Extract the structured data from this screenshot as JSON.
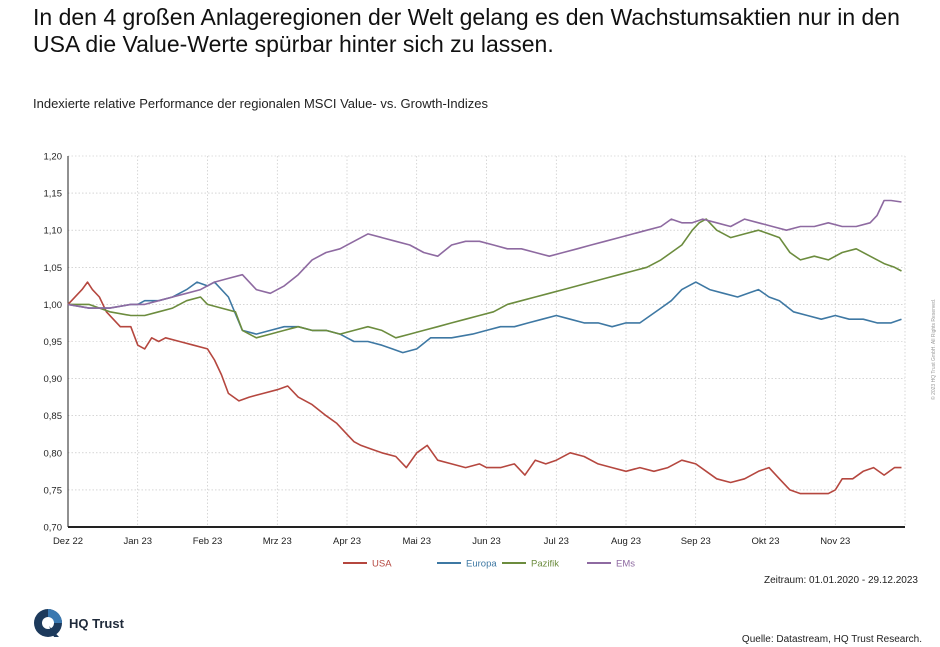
{
  "headline": "In den 4 großen Anlageregionen der Welt gelang es den Wachstumsaktien nur in den USA die Value-Werte spürbar hinter sich zu lassen.",
  "subtitle": "Indexierte relative Performance der regionalen MSCI Value- vs. Growth-Indizes",
  "timespan": "Zeitraum: 01.01.2020 - 29.12.2023",
  "source": "Quelle: Datastream, HQ Trust Research.",
  "copyright": "© 2023 HQ Trust GmbH. All Rights Reserved.",
  "logo": {
    "text": "HQ Trust"
  },
  "chart_data": {
    "type": "line",
    "title": "Indexierte relative Performance der regionalen MSCI Value- vs. Growth-Indizes",
    "xlabel": "",
    "ylabel": "",
    "x_range": [
      0,
      12
    ],
    "ylim": [
      0.7,
      1.2
    ],
    "grid": true,
    "legend_position": "bottom-center",
    "x_tick_labels": [
      "Dez 22",
      "Jan 23",
      "Feb 23",
      "Mrz 23",
      "Apr 23",
      "Mai 23",
      "Jun 23",
      "Jul 23",
      "Aug 23",
      "Sep 23",
      "Okt 23",
      "Nov 23"
    ],
    "y_tick_labels": [
      "1,20",
      "1,15",
      "1,10",
      "1,05",
      "1,00",
      "0,95",
      "0,90",
      "0,85",
      "0,80",
      "0,75",
      "0,70"
    ],
    "y_ticks": [
      1.2,
      1.15,
      1.1,
      1.05,
      1.0,
      0.95,
      0.9,
      0.85,
      0.8,
      0.75,
      0.7
    ],
    "series": [
      {
        "name": "USA",
        "color": "#b5473f",
        "x": [
          0,
          0.2,
          0.28,
          0.35,
          0.45,
          0.55,
          0.75,
          0.9,
          1.0,
          1.1,
          1.2,
          1.3,
          1.4,
          1.6,
          1.8,
          2.0,
          2.1,
          2.2,
          2.3,
          2.45,
          2.6,
          2.8,
          3.0,
          3.15,
          3.3,
          3.5,
          3.7,
          3.85,
          4.0,
          4.1,
          4.2,
          4.35,
          4.5,
          4.7,
          4.85,
          5.0,
          5.15,
          5.3,
          5.5,
          5.7,
          5.9,
          6.0,
          6.2,
          6.4,
          6.55,
          6.7,
          6.85,
          7.0,
          7.2,
          7.4,
          7.6,
          7.8,
          8.0,
          8.2,
          8.4,
          8.6,
          8.8,
          9.0,
          9.15,
          9.3,
          9.5,
          9.7,
          9.9,
          10.05,
          10.2,
          10.35,
          10.5,
          10.7,
          10.9,
          11.0,
          11.1,
          11.25,
          11.4,
          11.55,
          11.7,
          11.85,
          11.95
        ],
        "values": [
          1.0,
          1.02,
          1.03,
          1.02,
          1.01,
          0.99,
          0.97,
          0.97,
          0.945,
          0.94,
          0.955,
          0.95,
          0.955,
          0.95,
          0.945,
          0.94,
          0.925,
          0.905,
          0.88,
          0.87,
          0.875,
          0.88,
          0.885,
          0.89,
          0.875,
          0.865,
          0.85,
          0.84,
          0.825,
          0.815,
          0.81,
          0.805,
          0.8,
          0.795,
          0.78,
          0.8,
          0.81,
          0.79,
          0.785,
          0.78,
          0.785,
          0.78,
          0.78,
          0.785,
          0.77,
          0.79,
          0.785,
          0.79,
          0.8,
          0.795,
          0.785,
          0.78,
          0.775,
          0.78,
          0.775,
          0.78,
          0.79,
          0.785,
          0.775,
          0.765,
          0.76,
          0.765,
          0.775,
          0.78,
          0.765,
          0.75,
          0.745,
          0.745,
          0.745,
          0.75,
          0.765,
          0.765,
          0.775,
          0.78,
          0.77,
          0.78,
          0.78
        ]
      },
      {
        "name": "Europa",
        "color": "#3e78a3",
        "x": [
          0,
          0.3,
          0.6,
          0.9,
          1.0,
          1.1,
          1.3,
          1.5,
          1.7,
          1.85,
          2.0,
          2.1,
          2.3,
          2.5,
          2.7,
          2.9,
          3.1,
          3.3,
          3.5,
          3.7,
          3.9,
          4.0,
          4.1,
          4.3,
          4.5,
          4.65,
          4.8,
          5.0,
          5.2,
          5.5,
          5.8,
          6.0,
          6.2,
          6.4,
          6.6,
          6.8,
          7.0,
          7.2,
          7.4,
          7.6,
          7.8,
          8.0,
          8.2,
          8.35,
          8.5,
          8.65,
          8.8,
          9.0,
          9.2,
          9.4,
          9.6,
          9.75,
          9.9,
          10.05,
          10.2,
          10.4,
          10.6,
          10.8,
          11.0,
          11.2,
          11.4,
          11.6,
          11.8,
          11.95
        ],
        "values": [
          1.0,
          0.995,
          0.995,
          1.0,
          1.0,
          1.005,
          1.005,
          1.01,
          1.02,
          1.03,
          1.025,
          1.03,
          1.01,
          0.965,
          0.96,
          0.965,
          0.97,
          0.97,
          0.965,
          0.965,
          0.96,
          0.955,
          0.95,
          0.95,
          0.945,
          0.94,
          0.935,
          0.94,
          0.955,
          0.955,
          0.96,
          0.965,
          0.97,
          0.97,
          0.975,
          0.98,
          0.985,
          0.98,
          0.975,
          0.975,
          0.97,
          0.975,
          0.975,
          0.985,
          0.995,
          1.005,
          1.02,
          1.03,
          1.02,
          1.015,
          1.01,
          1.015,
          1.02,
          1.01,
          1.005,
          0.99,
          0.985,
          0.98,
          0.985,
          0.98,
          0.98,
          0.975,
          0.975,
          0.98
        ]
      },
      {
        "name": "Pazifik",
        "color": "#6c8c3e",
        "x": [
          0,
          0.3,
          0.6,
          0.9,
          1.1,
          1.3,
          1.5,
          1.7,
          1.9,
          2.0,
          2.2,
          2.4,
          2.5,
          2.7,
          2.9,
          3.1,
          3.3,
          3.5,
          3.7,
          3.9,
          4.1,
          4.3,
          4.5,
          4.7,
          4.9,
          5.1,
          5.3,
          5.5,
          5.7,
          5.9,
          6.1,
          6.3,
          6.5,
          6.7,
          6.9,
          7.1,
          7.3,
          7.5,
          7.7,
          7.9,
          8.1,
          8.3,
          8.5,
          8.65,
          8.8,
          8.95,
          9.05,
          9.15,
          9.3,
          9.5,
          9.7,
          9.9,
          10.05,
          10.2,
          10.35,
          10.5,
          10.7,
          10.9,
          11.1,
          11.3,
          11.5,
          11.7,
          11.85,
          11.95
        ],
        "values": [
          1.0,
          1.0,
          0.99,
          0.985,
          0.985,
          0.99,
          0.995,
          1.005,
          1.01,
          1.0,
          0.995,
          0.99,
          0.965,
          0.955,
          0.96,
          0.965,
          0.97,
          0.965,
          0.965,
          0.96,
          0.965,
          0.97,
          0.965,
          0.955,
          0.96,
          0.965,
          0.97,
          0.975,
          0.98,
          0.985,
          0.99,
          1.0,
          1.005,
          1.01,
          1.015,
          1.02,
          1.025,
          1.03,
          1.035,
          1.04,
          1.045,
          1.05,
          1.06,
          1.07,
          1.08,
          1.1,
          1.11,
          1.115,
          1.1,
          1.09,
          1.095,
          1.1,
          1.095,
          1.09,
          1.07,
          1.06,
          1.065,
          1.06,
          1.07,
          1.075,
          1.065,
          1.055,
          1.05,
          1.045
        ]
      },
      {
        "name": "EMs",
        "color": "#8e6aa1",
        "x": [
          0,
          0.3,
          0.6,
          0.9,
          1.1,
          1.3,
          1.5,
          1.7,
          1.9,
          2.1,
          2.3,
          2.5,
          2.7,
          2.9,
          3.1,
          3.3,
          3.5,
          3.7,
          3.9,
          4.1,
          4.3,
          4.5,
          4.7,
          4.9,
          5.1,
          5.3,
          5.5,
          5.7,
          5.9,
          6.1,
          6.3,
          6.5,
          6.7,
          6.9,
          7.1,
          7.3,
          7.5,
          7.7,
          7.9,
          8.1,
          8.3,
          8.5,
          8.65,
          8.8,
          8.95,
          9.1,
          9.3,
          9.5,
          9.7,
          9.9,
          10.1,
          10.3,
          10.5,
          10.7,
          10.9,
          11.1,
          11.3,
          11.5,
          11.6,
          11.7,
          11.8,
          11.95
        ],
        "values": [
          1.0,
          0.995,
          0.995,
          1.0,
          1.0,
          1.005,
          1.01,
          1.015,
          1.02,
          1.03,
          1.035,
          1.04,
          1.02,
          1.015,
          1.025,
          1.04,
          1.06,
          1.07,
          1.075,
          1.085,
          1.095,
          1.09,
          1.085,
          1.08,
          1.07,
          1.065,
          1.08,
          1.085,
          1.085,
          1.08,
          1.075,
          1.075,
          1.07,
          1.065,
          1.07,
          1.075,
          1.08,
          1.085,
          1.09,
          1.095,
          1.1,
          1.105,
          1.115,
          1.11,
          1.11,
          1.115,
          1.11,
          1.105,
          1.115,
          1.11,
          1.105,
          1.1,
          1.105,
          1.105,
          1.11,
          1.105,
          1.105,
          1.11,
          1.12,
          1.14,
          1.14,
          1.138
        ]
      }
    ]
  }
}
